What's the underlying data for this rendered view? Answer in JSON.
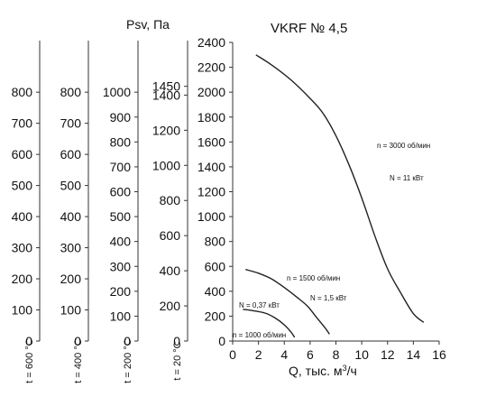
{
  "chart_data": {
    "type": "line",
    "title": "VKRF № 4,5",
    "ylabel": "Psv, Па",
    "xlabel": "Q, тыс. м³/ч",
    "xlim": [
      0,
      16
    ],
    "ylim": [
      0,
      2400
    ],
    "x_ticks": [
      "0",
      "2",
      "4",
      "6",
      "8",
      "10",
      "12",
      "14",
      "16"
    ],
    "y_ticks": [
      "0",
      "200",
      "400",
      "600",
      "800",
      "1000",
      "1200",
      "1400",
      "1600",
      "1800",
      "2000",
      "2200",
      "2400"
    ],
    "grid": false,
    "series": [
      {
        "name": "n = 3000 об/мин",
        "points": [
          [
            1.8,
            2300
          ],
          [
            3,
            2220
          ],
          [
            4.5,
            2100
          ],
          [
            6,
            1950
          ],
          [
            7,
            1830
          ],
          [
            8,
            1650
          ],
          [
            9,
            1420
          ],
          [
            10,
            1150
          ],
          [
            11,
            850
          ],
          [
            12,
            580
          ],
          [
            13,
            390
          ],
          [
            14,
            220
          ],
          [
            14.8,
            150
          ]
        ]
      },
      {
        "name": "n = 1500 об/мин",
        "points": [
          [
            1,
            575
          ],
          [
            2,
            545
          ],
          [
            3,
            500
          ],
          [
            4,
            430
          ],
          [
            5,
            350
          ],
          [
            5.8,
            280
          ],
          [
            6.5,
            190
          ],
          [
            7.2,
            100
          ],
          [
            7.5,
            55
          ]
        ]
      },
      {
        "name": "n = 1000 об/мин",
        "points": [
          [
            0.8,
            255
          ],
          [
            1.5,
            245
          ],
          [
            2.5,
            225
          ],
          [
            3.3,
            185
          ],
          [
            4,
            130
          ],
          [
            4.5,
            75
          ],
          [
            4.8,
            30
          ]
        ]
      }
    ],
    "annotations": {
      "n3000": "n = 3000 об/мин",
      "n3000_power": "N = 11 кВт",
      "n1500": "n = 1500 об/мин",
      "n1500_power": "N = 1,5 кВт",
      "n1000": "n = 1000 об/мин",
      "n1000_power": "N = 0,37 кВт"
    },
    "secondary_axes": [
      {
        "label": "t = 20 °С",
        "ticks": [
          "0",
          "200",
          "400",
          "600",
          "800",
          "1000",
          "1200",
          "1400",
          "1450"
        ]
      },
      {
        "label": "t = 200 °С",
        "ticks": [
          "0",
          "100",
          "200",
          "300",
          "400",
          "500",
          "600",
          "700",
          "800",
          "900",
          "1000"
        ]
      },
      {
        "label": "t = 400 °С",
        "ticks": [
          "0",
          "100",
          "200",
          "300",
          "400",
          "500",
          "600",
          "700",
          "800"
        ]
      },
      {
        "label": "t = 600 °С",
        "ticks": [
          "0",
          "100",
          "200",
          "300",
          "400",
          "500",
          "600",
          "700",
          "800"
        ]
      }
    ]
  }
}
